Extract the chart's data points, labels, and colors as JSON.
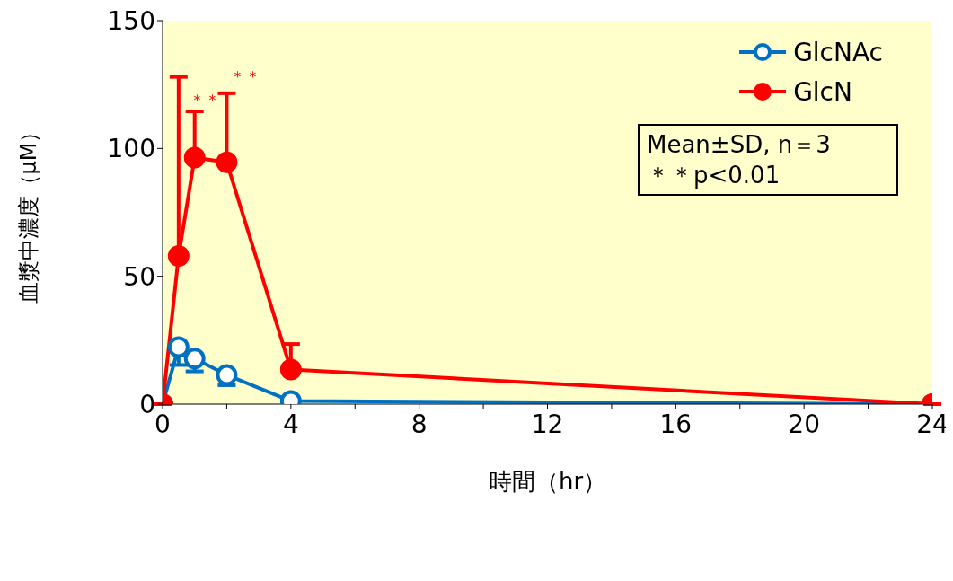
{
  "chart_data": {
    "type": "line",
    "xlabel": "時間（hr）",
    "ylabel": "血漿中濃度（μM）",
    "x": [
      0,
      0.5,
      1,
      2,
      4,
      24
    ],
    "series": [
      {
        "name": "GlcNAc",
        "color": "#0070c0",
        "values": [
          0,
          22.3,
          17.8,
          11.4,
          1.2,
          0
        ],
        "errors": [
          null,
          [
            15.3,
            22.3
          ],
          [
            12.8,
            17.8
          ],
          [
            7.4,
            11.4
          ],
          null,
          null
        ]
      },
      {
        "name": "GlcN",
        "color": "#ff0000",
        "values": [
          0,
          58,
          96.4,
          94.6,
          13.5,
          0
        ],
        "errors": [
          null,
          [
            58,
            128
          ],
          [
            96.4,
            114.5
          ],
          [
            94.6,
            121.6
          ],
          [
            13.5,
            23.5
          ],
          null
        ]
      }
    ],
    "xlim": [
      0,
      24
    ],
    "xticks": [
      0,
      {
        "value": 2,
        "label": null
      },
      4,
      {
        "value": 6,
        "label": null
      },
      8,
      {
        "value": 10,
        "label": null
      },
      12,
      {
        "value": 14,
        "label": null
      },
      16,
      {
        "value": 18,
        "label": null
      },
      20,
      {
        "value": 22,
        "label": null
      },
      24
    ],
    "ylim": [
      0,
      150
    ],
    "yticks": [
      0,
      50,
      100,
      150
    ],
    "legend": "top right",
    "marker": "circle",
    "line_style": "solid",
    "grid": false,
    "annotations": [
      "＊＊",
      "＊＊",
      "Mean±SD, n＝3",
      "＊＊p<0.01"
    ]
  }
}
